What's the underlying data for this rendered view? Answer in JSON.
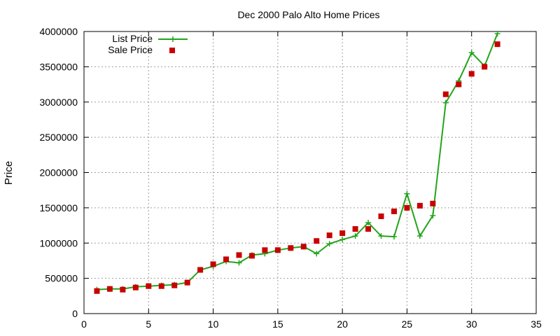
{
  "chart_data": {
    "type": "line",
    "title": "Dec 2000 Palo Alto Home Prices",
    "xlabel": "",
    "ylabel": "Price",
    "xlim": [
      0,
      35
    ],
    "ylim": [
      0,
      4000000
    ],
    "x_ticks": [
      0,
      5,
      10,
      15,
      20,
      25,
      30,
      35
    ],
    "y_ticks": [
      0,
      500000,
      1000000,
      1500000,
      2000000,
      2500000,
      3000000,
      3500000,
      4000000
    ],
    "grid": true,
    "legend_position": "top-left",
    "series": [
      {
        "name": "List Price",
        "style": "linespoints",
        "marker": "plus",
        "color": "#22a51b",
        "x": [
          1,
          2,
          3,
          4,
          5,
          6,
          7,
          8,
          9,
          10,
          11,
          12,
          13,
          14,
          15,
          16,
          17,
          18,
          19,
          20,
          21,
          22,
          23,
          24,
          25,
          26,
          27,
          28,
          29,
          30,
          31,
          32
        ],
        "values": [
          340000,
          350000,
          350000,
          380000,
          390000,
          400000,
          410000,
          440000,
          620000,
          670000,
          740000,
          720000,
          830000,
          850000,
          900000,
          930000,
          950000,
          850000,
          990000,
          1050000,
          1100000,
          1290000,
          1100000,
          1090000,
          1700000,
          1100000,
          1390000,
          2990000,
          3300000,
          3700000,
          3510000,
          3970000
        ]
      },
      {
        "name": "Sale Price",
        "style": "points",
        "marker": "square",
        "color": "#c80000",
        "x": [
          1,
          2,
          3,
          4,
          5,
          6,
          7,
          8,
          9,
          10,
          11,
          12,
          13,
          14,
          15,
          16,
          17,
          18,
          19,
          20,
          21,
          22,
          23,
          24,
          25,
          26,
          27,
          28,
          29,
          30,
          31,
          32
        ],
        "values": [
          320000,
          350000,
          340000,
          370000,
          390000,
          390000,
          400000,
          440000,
          620000,
          700000,
          770000,
          830000,
          820000,
          900000,
          900000,
          930000,
          950000,
          1030000,
          1110000,
          1140000,
          1200000,
          1200000,
          1380000,
          1450000,
          1500000,
          1530000,
          1560000,
          3110000,
          3250000,
          3400000,
          3500000,
          3820000
        ]
      }
    ]
  }
}
